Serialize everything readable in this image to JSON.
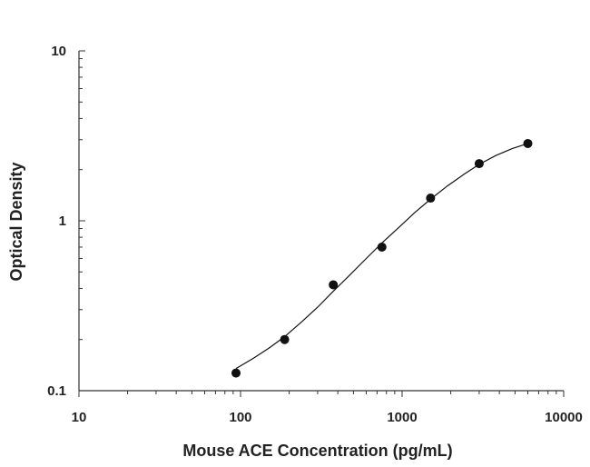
{
  "chart_data": {
    "type": "scatter",
    "xlabel": "Mouse ACE Concentration (pg/mL)",
    "ylabel": "Optical Density",
    "x_scale": "log",
    "y_scale": "log",
    "xlim": [
      10,
      10000
    ],
    "ylim": [
      0.1,
      10
    ],
    "x_ticks": [
      10,
      100,
      1000,
      10000
    ],
    "x_tick_labels": [
      "10",
      "100",
      "1000",
      "10000"
    ],
    "y_ticks": [
      0.1,
      1,
      10
    ],
    "y_tick_labels": [
      "0.1",
      "1",
      "10"
    ],
    "grid": false,
    "series": [
      {
        "points": [
          {
            "x": 93.75,
            "y": 0.127
          },
          {
            "x": 187.5,
            "y": 0.2
          },
          {
            "x": 375,
            "y": 0.42
          },
          {
            "x": 750,
            "y": 0.7
          },
          {
            "x": 1500,
            "y": 1.36
          },
          {
            "x": 3000,
            "y": 2.17
          },
          {
            "x": 6000,
            "y": 2.85
          }
        ],
        "color": "#111111"
      }
    ],
    "fit_curve": {
      "x": [
        93.75,
        120,
        150,
        187.5,
        240,
        300,
        375,
        470,
        600,
        750,
        950,
        1200,
        1500,
        1900,
        2400,
        3000,
        3800,
        4800,
        6000
      ],
      "y": [
        0.135,
        0.155,
        0.178,
        0.208,
        0.255,
        0.31,
        0.385,
        0.475,
        0.6,
        0.74,
        0.91,
        1.12,
        1.34,
        1.6,
        1.87,
        2.15,
        2.42,
        2.66,
        2.85
      ],
      "color": "#111111"
    }
  }
}
